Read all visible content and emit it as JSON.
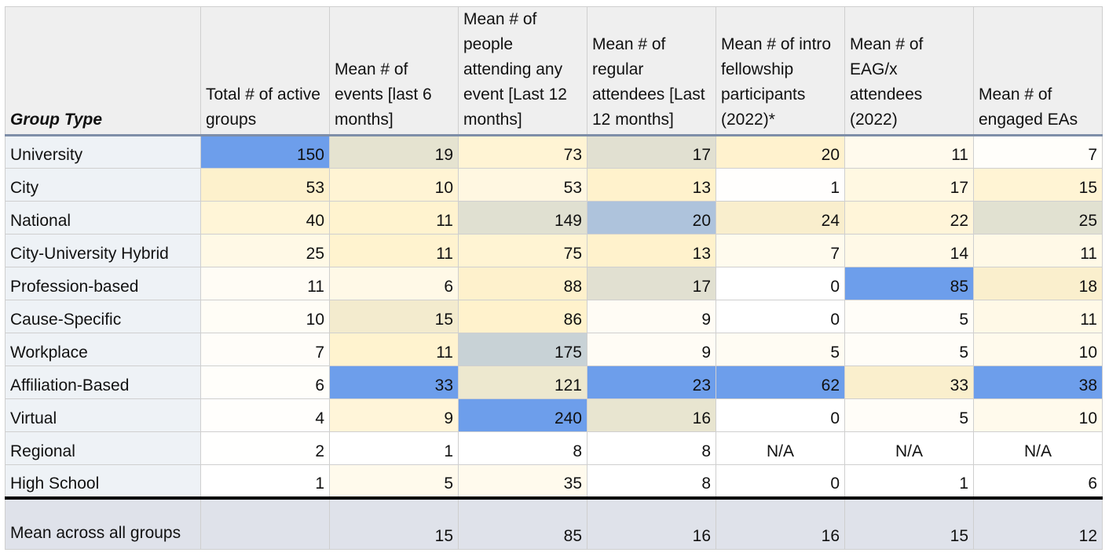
{
  "chart_data": {
    "type": "table",
    "columns": [
      "Group Type",
      "Total # of active groups",
      "Mean # of events [last 6 months]",
      "Mean # of people attending any event [Last 12 months]",
      "Mean # of regular attendees [Last 12 months]",
      "Mean # of intro fellowship participants (2022)*",
      "Mean # of EAG/x attendees (2022)",
      "Mean # of engaged EAs"
    ],
    "rows": [
      {
        "label": "University",
        "values": [
          "150",
          "19",
          "73",
          "17",
          "20",
          "11",
          "7"
        ]
      },
      {
        "label": "City",
        "values": [
          "53",
          "10",
          "53",
          "13",
          "1",
          "17",
          "15"
        ]
      },
      {
        "label": "National",
        "values": [
          "40",
          "11",
          "149",
          "20",
          "24",
          "22",
          "25"
        ]
      },
      {
        "label": "City-University Hybrid",
        "values": [
          "25",
          "11",
          "75",
          "13",
          "7",
          "14",
          "11"
        ]
      },
      {
        "label": "Profession-based",
        "values": [
          "11",
          "6",
          "88",
          "17",
          "0",
          "85",
          "18"
        ]
      },
      {
        "label": "Cause-Specific",
        "values": [
          "10",
          "15",
          "86",
          "9",
          "0",
          "5",
          "11"
        ]
      },
      {
        "label": "Workplace",
        "values": [
          "7",
          "11",
          "175",
          "9",
          "5",
          "5",
          "10"
        ]
      },
      {
        "label": "Affiliation-Based",
        "values": [
          "6",
          "33",
          "121",
          "23",
          "62",
          "33",
          "38"
        ]
      },
      {
        "label": "Virtual",
        "values": [
          "4",
          "9",
          "240",
          "16",
          "0",
          "5",
          "10"
        ]
      },
      {
        "label": "Regional",
        "values": [
          "2",
          "1",
          "8",
          "8",
          "N/A",
          "N/A",
          "N/A"
        ]
      },
      {
        "label": "High School",
        "values": [
          "1",
          "5",
          "35",
          "8",
          "0",
          "1",
          "6"
        ]
      }
    ],
    "footer": {
      "label": "Mean across all groups",
      "values": [
        "",
        "15",
        "85",
        "16",
        "16",
        "15",
        "12"
      ]
    },
    "colors": {
      "scale_white": "#ffffff",
      "scale_yellow": "#fff2cc",
      "scale_grey": "#d9dcd2",
      "scale_blue": "#6d9eeb",
      "header_bg": "#efefef",
      "label_bg": "#eef2f6",
      "footer_bg": "#dfe2ea"
    }
  }
}
